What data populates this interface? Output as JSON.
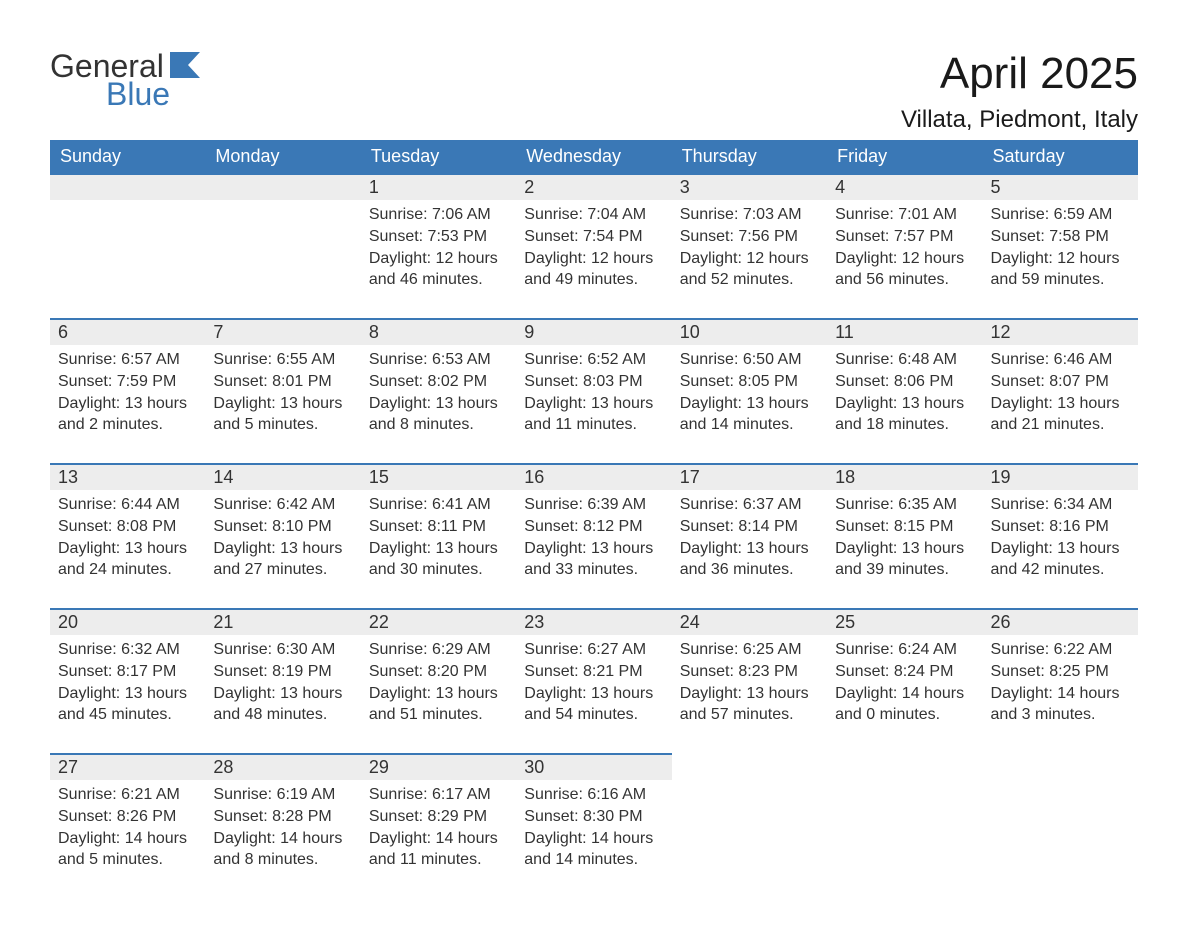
{
  "logo": {
    "general": "General",
    "blue": "Blue"
  },
  "title": "April 2025",
  "location": "Villata, Piedmont, Italy",
  "colors": {
    "header_bg": "#3a78b6",
    "header_text": "#ffffff",
    "band_bg": "#ededed",
    "band_border": "#3a78b6",
    "body_text": "#333333",
    "page_bg": "#ffffff"
  },
  "weekdays": [
    "Sunday",
    "Monday",
    "Tuesday",
    "Wednesday",
    "Thursday",
    "Friday",
    "Saturday"
  ],
  "weeks": [
    [
      {
        "blank": true
      },
      {
        "blank": true
      },
      {
        "num": "1",
        "sunrise": "Sunrise: 7:06 AM",
        "sunset": "Sunset: 7:53 PM",
        "dl1": "Daylight: 12 hours",
        "dl2": "and 46 minutes."
      },
      {
        "num": "2",
        "sunrise": "Sunrise: 7:04 AM",
        "sunset": "Sunset: 7:54 PM",
        "dl1": "Daylight: 12 hours",
        "dl2": "and 49 minutes."
      },
      {
        "num": "3",
        "sunrise": "Sunrise: 7:03 AM",
        "sunset": "Sunset: 7:56 PM",
        "dl1": "Daylight: 12 hours",
        "dl2": "and 52 minutes."
      },
      {
        "num": "4",
        "sunrise": "Sunrise: 7:01 AM",
        "sunset": "Sunset: 7:57 PM",
        "dl1": "Daylight: 12 hours",
        "dl2": "and 56 minutes."
      },
      {
        "num": "5",
        "sunrise": "Sunrise: 6:59 AM",
        "sunset": "Sunset: 7:58 PM",
        "dl1": "Daylight: 12 hours",
        "dl2": "and 59 minutes."
      }
    ],
    [
      {
        "num": "6",
        "sunrise": "Sunrise: 6:57 AM",
        "sunset": "Sunset: 7:59 PM",
        "dl1": "Daylight: 13 hours",
        "dl2": "and 2 minutes."
      },
      {
        "num": "7",
        "sunrise": "Sunrise: 6:55 AM",
        "sunset": "Sunset: 8:01 PM",
        "dl1": "Daylight: 13 hours",
        "dl2": "and 5 minutes."
      },
      {
        "num": "8",
        "sunrise": "Sunrise: 6:53 AM",
        "sunset": "Sunset: 8:02 PM",
        "dl1": "Daylight: 13 hours",
        "dl2": "and 8 minutes."
      },
      {
        "num": "9",
        "sunrise": "Sunrise: 6:52 AM",
        "sunset": "Sunset: 8:03 PM",
        "dl1": "Daylight: 13 hours",
        "dl2": "and 11 minutes."
      },
      {
        "num": "10",
        "sunrise": "Sunrise: 6:50 AM",
        "sunset": "Sunset: 8:05 PM",
        "dl1": "Daylight: 13 hours",
        "dl2": "and 14 minutes."
      },
      {
        "num": "11",
        "sunrise": "Sunrise: 6:48 AM",
        "sunset": "Sunset: 8:06 PM",
        "dl1": "Daylight: 13 hours",
        "dl2": "and 18 minutes."
      },
      {
        "num": "12",
        "sunrise": "Sunrise: 6:46 AM",
        "sunset": "Sunset: 8:07 PM",
        "dl1": "Daylight: 13 hours",
        "dl2": "and 21 minutes."
      }
    ],
    [
      {
        "num": "13",
        "sunrise": "Sunrise: 6:44 AM",
        "sunset": "Sunset: 8:08 PM",
        "dl1": "Daylight: 13 hours",
        "dl2": "and 24 minutes."
      },
      {
        "num": "14",
        "sunrise": "Sunrise: 6:42 AM",
        "sunset": "Sunset: 8:10 PM",
        "dl1": "Daylight: 13 hours",
        "dl2": "and 27 minutes."
      },
      {
        "num": "15",
        "sunrise": "Sunrise: 6:41 AM",
        "sunset": "Sunset: 8:11 PM",
        "dl1": "Daylight: 13 hours",
        "dl2": "and 30 minutes."
      },
      {
        "num": "16",
        "sunrise": "Sunrise: 6:39 AM",
        "sunset": "Sunset: 8:12 PM",
        "dl1": "Daylight: 13 hours",
        "dl2": "and 33 minutes."
      },
      {
        "num": "17",
        "sunrise": "Sunrise: 6:37 AM",
        "sunset": "Sunset: 8:14 PM",
        "dl1": "Daylight: 13 hours",
        "dl2": "and 36 minutes."
      },
      {
        "num": "18",
        "sunrise": "Sunrise: 6:35 AM",
        "sunset": "Sunset: 8:15 PM",
        "dl1": "Daylight: 13 hours",
        "dl2": "and 39 minutes."
      },
      {
        "num": "19",
        "sunrise": "Sunrise: 6:34 AM",
        "sunset": "Sunset: 8:16 PM",
        "dl1": "Daylight: 13 hours",
        "dl2": "and 42 minutes."
      }
    ],
    [
      {
        "num": "20",
        "sunrise": "Sunrise: 6:32 AM",
        "sunset": "Sunset: 8:17 PM",
        "dl1": "Daylight: 13 hours",
        "dl2": "and 45 minutes."
      },
      {
        "num": "21",
        "sunrise": "Sunrise: 6:30 AM",
        "sunset": "Sunset: 8:19 PM",
        "dl1": "Daylight: 13 hours",
        "dl2": "and 48 minutes."
      },
      {
        "num": "22",
        "sunrise": "Sunrise: 6:29 AM",
        "sunset": "Sunset: 8:20 PM",
        "dl1": "Daylight: 13 hours",
        "dl2": "and 51 minutes."
      },
      {
        "num": "23",
        "sunrise": "Sunrise: 6:27 AM",
        "sunset": "Sunset: 8:21 PM",
        "dl1": "Daylight: 13 hours",
        "dl2": "and 54 minutes."
      },
      {
        "num": "24",
        "sunrise": "Sunrise: 6:25 AM",
        "sunset": "Sunset: 8:23 PM",
        "dl1": "Daylight: 13 hours",
        "dl2": "and 57 minutes."
      },
      {
        "num": "25",
        "sunrise": "Sunrise: 6:24 AM",
        "sunset": "Sunset: 8:24 PM",
        "dl1": "Daylight: 14 hours",
        "dl2": "and 0 minutes."
      },
      {
        "num": "26",
        "sunrise": "Sunrise: 6:22 AM",
        "sunset": "Sunset: 8:25 PM",
        "dl1": "Daylight: 14 hours",
        "dl2": "and 3 minutes."
      }
    ],
    [
      {
        "num": "27",
        "sunrise": "Sunrise: 6:21 AM",
        "sunset": "Sunset: 8:26 PM",
        "dl1": "Daylight: 14 hours",
        "dl2": "and 5 minutes."
      },
      {
        "num": "28",
        "sunrise": "Sunrise: 6:19 AM",
        "sunset": "Sunset: 8:28 PM",
        "dl1": "Daylight: 14 hours",
        "dl2": "and 8 minutes."
      },
      {
        "num": "29",
        "sunrise": "Sunrise: 6:17 AM",
        "sunset": "Sunset: 8:29 PM",
        "dl1": "Daylight: 14 hours",
        "dl2": "and 11 minutes."
      },
      {
        "num": "30",
        "sunrise": "Sunrise: 6:16 AM",
        "sunset": "Sunset: 8:30 PM",
        "dl1": "Daylight: 14 hours",
        "dl2": "and 14 minutes."
      },
      {
        "blank": true
      },
      {
        "blank": true
      },
      {
        "blank": true
      }
    ]
  ]
}
